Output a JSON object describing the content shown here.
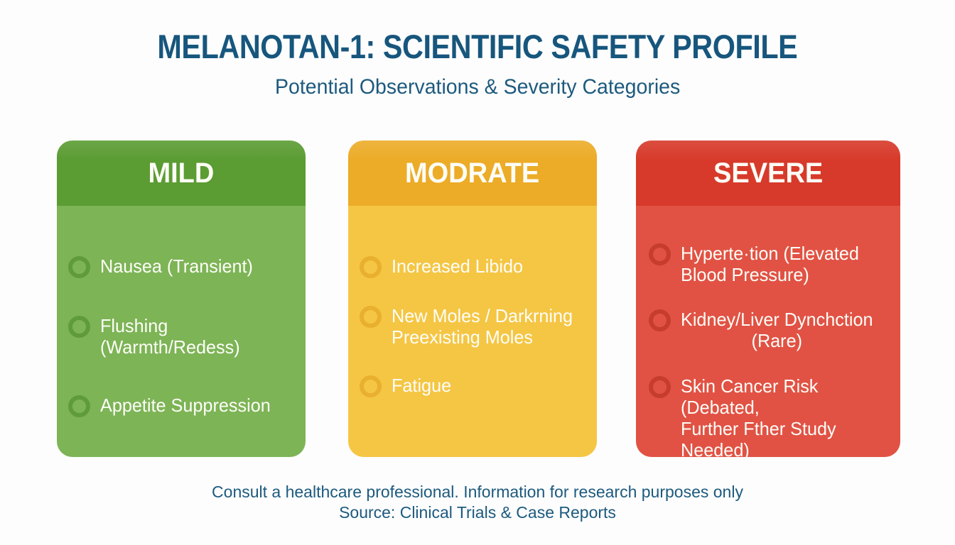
{
  "page": {
    "title": "MELANOTAN-1: SCIENTIFIC SAFETY PROFILE",
    "subtitle": "Potential Observations & Severity Categories",
    "title_color": "#17567d",
    "background_color": "#fdfdfd",
    "footer_line1": "Consult a healthcare professional. Information for research purposes only",
    "footer_line2": "Source: Clinical Trials & Case Reports"
  },
  "cards": [
    {
      "label": "MILD",
      "header_color": "#5b9c33",
      "body_color": "#7db456",
      "ring_color": "#4f8c28",
      "items": [
        {
          "text": "Nausea (Transient)"
        },
        {
          "text": "Flushing (Warmth/Redess)"
        },
        {
          "text": "Appetite Suppression"
        }
      ]
    },
    {
      "label": "MODRATE",
      "header_color": "#ecac28",
      "body_color": "#f5c644",
      "ring_color": "#e0a320",
      "items": [
        {
          "text": "Increased Libido"
        },
        {
          "text": "New Moles / Darkrning\nPreexisting Moles"
        },
        {
          "text": "Fatigue"
        }
      ]
    },
    {
      "label": "SEVERE",
      "header_color": "#d73a2a",
      "body_color": "#e15244",
      "ring_color": "#b52f1f",
      "items": [
        {
          "text": "Hyperte·tion (Elevated\nBlood Pressure)"
        },
        {
          "text": "Kidney/Liver Dynchction\n(Rare)"
        },
        {
          "text": "Skin Cancer Risk (Debated,\nFurther Fther Study Needed)"
        }
      ]
    }
  ]
}
